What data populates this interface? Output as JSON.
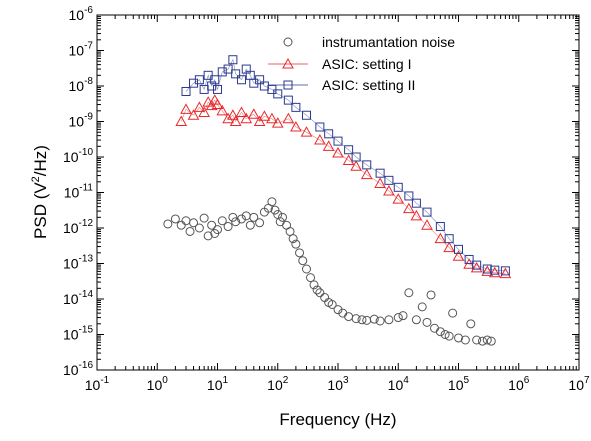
{
  "chart_data": {
    "type": "scatter",
    "xlabel": "Frequency (Hz)",
    "ylabel_main": "PSD (V",
    "ylabel_sup": "2",
    "ylabel_tail": "/Hz)",
    "x_scale": "log",
    "y_scale": "log",
    "xlim": [
      0.1,
      10000000
    ],
    "ylim": [
      1e-16,
      1e-06
    ],
    "x_ticks": [
      {
        "base": "10",
        "exp": "-1",
        "value": 0.1
      },
      {
        "base": "10",
        "exp": "0",
        "value": 1
      },
      {
        "base": "10",
        "exp": "1",
        "value": 10
      },
      {
        "base": "10",
        "exp": "2",
        "value": 100
      },
      {
        "base": "10",
        "exp": "3",
        "value": 1000
      },
      {
        "base": "10",
        "exp": "4",
        "value": 10000
      },
      {
        "base": "10",
        "exp": "5",
        "value": 100000
      },
      {
        "base": "10",
        "exp": "6",
        "value": 1000000
      },
      {
        "base": "10",
        "exp": "7",
        "value": 10000000
      }
    ],
    "y_ticks": [
      {
        "base": "10",
        "exp": "-6",
        "value": 1e-06
      },
      {
        "base": "10",
        "exp": "-7",
        "value": 1e-07
      },
      {
        "base": "10",
        "exp": "-8",
        "value": 1e-08
      },
      {
        "base": "10",
        "exp": "-9",
        "value": 1e-09
      },
      {
        "base": "10",
        "exp": "-10",
        "value": 1e-10
      },
      {
        "base": "10",
        "exp": "-11",
        "value": 1e-11
      },
      {
        "base": "10",
        "exp": "-12",
        "value": 1e-12
      },
      {
        "base": "10",
        "exp": "-13",
        "value": 1e-13
      },
      {
        "base": "10",
        "exp": "-14",
        "value": 1e-14
      },
      {
        "base": "10",
        "exp": "-15",
        "value": 1e-15
      },
      {
        "base": "10",
        "exp": "-16",
        "value": 1e-16
      }
    ],
    "grid": false,
    "legend_position": "top-right",
    "series": [
      {
        "name": "instrumantation noise",
        "marker": "circle",
        "color": "#555555",
        "points": [
          [
            1.5,
            1.3e-12
          ],
          [
            2,
            1.8e-12
          ],
          [
            2.5,
            1.2e-12
          ],
          [
            3,
            1.6e-12
          ],
          [
            3.5,
            8e-13
          ],
          [
            4,
            1.4e-12
          ],
          [
            5,
            1e-12
          ],
          [
            6,
            1.9e-12
          ],
          [
            7,
            6e-13
          ],
          [
            8,
            1.2e-12
          ],
          [
            9,
            7e-13
          ],
          [
            10,
            9e-13
          ],
          [
            12,
            1.6e-12
          ],
          [
            15,
            1.1e-12
          ],
          [
            18,
            2e-12
          ],
          [
            20,
            1.5e-12
          ],
          [
            25,
            1.8e-12
          ],
          [
            30,
            2.2e-12
          ],
          [
            35,
            1.2e-12
          ],
          [
            40,
            2e-12
          ],
          [
            50,
            1.4e-12
          ],
          [
            60,
            2.8e-12
          ],
          [
            70,
            3.6e-12
          ],
          [
            80,
            5.5e-12
          ],
          [
            90,
            3.2e-12
          ],
          [
            100,
            2.4e-12
          ],
          [
            110,
            1.5e-12
          ],
          [
            120,
            2e-12
          ],
          [
            140,
            1.2e-12
          ],
          [
            160,
            8e-13
          ],
          [
            180,
            5e-13
          ],
          [
            200,
            3.5e-13
          ],
          [
            230,
            2e-13
          ],
          [
            260,
            1.2e-13
          ],
          [
            300,
            7e-14
          ],
          [
            350,
            4e-14
          ],
          [
            400,
            2.5e-14
          ],
          [
            450,
            1.8e-14
          ],
          [
            500,
            1.5e-14
          ],
          [
            600,
            1.1e-14
          ],
          [
            700,
            8e-15
          ],
          [
            800,
            7e-15
          ],
          [
            1000,
            5e-15
          ],
          [
            1200,
            4e-15
          ],
          [
            1500,
            3.2e-15
          ],
          [
            2000,
            2.8e-15
          ],
          [
            2500,
            2.6e-15
          ],
          [
            3000,
            2.5e-15
          ],
          [
            4000,
            2.7e-15
          ],
          [
            5000,
            2.4e-15
          ],
          [
            7000,
            2.6e-15
          ],
          [
            10000,
            3e-15
          ],
          [
            12000,
            3.4e-15
          ],
          [
            15000,
            1.5e-14
          ],
          [
            20000,
            2.6e-15
          ],
          [
            25000,
            6e-15
          ],
          [
            30000,
            2.2e-15
          ],
          [
            35000,
            1.3e-14
          ],
          [
            40000,
            1.5e-15
          ],
          [
            50000,
            1.2e-15
          ],
          [
            60000,
            1e-15
          ],
          [
            70000,
            9e-16
          ],
          [
            80000,
            4e-15
          ],
          [
            100000,
            8e-16
          ],
          [
            130000,
            7e-16
          ],
          [
            160000,
            2e-15
          ],
          [
            200000,
            7e-16
          ],
          [
            250000,
            6.5e-16
          ],
          [
            300000,
            7e-16
          ],
          [
            350000,
            6.5e-16
          ]
        ]
      },
      {
        "name": "ASIC: setting I",
        "marker": "triangle",
        "color": "#e8282b",
        "points": [
          [
            2.5,
            1e-09
          ],
          [
            3,
            2.2e-09
          ],
          [
            4,
            1.5e-09
          ],
          [
            5,
            2.5e-09
          ],
          [
            6,
            1.8e-09
          ],
          [
            7,
            3.5e-09
          ],
          [
            8,
            2.8e-09
          ],
          [
            9,
            4e-09
          ],
          [
            10,
            3e-09
          ],
          [
            12,
            2e-09
          ],
          [
            15,
            1.2e-09
          ],
          [
            18,
            1.5e-09
          ],
          [
            20,
            1e-09
          ],
          [
            25,
            1.8e-09
          ],
          [
            30,
            1.2e-09
          ],
          [
            40,
            1.6e-09
          ],
          [
            50,
            1e-09
          ],
          [
            60,
            1.4e-09
          ],
          [
            80,
            1.2e-09
          ],
          [
            100,
            9e-10
          ],
          [
            150,
            1.2e-09
          ],
          [
            200,
            7e-10
          ],
          [
            300,
            5e-10
          ],
          [
            500,
            3e-10
          ],
          [
            700,
            2e-10
          ],
          [
            1000,
            1.3e-10
          ],
          [
            1500,
            8e-11
          ],
          [
            2000,
            5.5e-11
          ],
          [
            3000,
            3.2e-11
          ],
          [
            5000,
            1.8e-11
          ],
          [
            7000,
            1.1e-11
          ],
          [
            10000,
            6.5e-12
          ],
          [
            15000,
            3.5e-12
          ],
          [
            20000,
            2.2e-12
          ],
          [
            30000,
            1.2e-12
          ],
          [
            50000,
            5e-13
          ],
          [
            70000,
            2.8e-13
          ],
          [
            100000,
            1.6e-13
          ],
          [
            150000,
            9.5e-14
          ],
          [
            200000,
            7.5e-14
          ],
          [
            300000,
            6e-14
          ],
          [
            400000,
            5.5e-14
          ],
          [
            600000,
            5.2e-14
          ]
        ]
      },
      {
        "name": "ASIC: setting II",
        "marker": "square",
        "color": "#2b3a8f",
        "points": [
          [
            3,
            7e-09
          ],
          [
            4,
            1.2e-08
          ],
          [
            5,
            1.5e-08
          ],
          [
            6,
            8e-09
          ],
          [
            7,
            2e-08
          ],
          [
            8,
            1e-08
          ],
          [
            9,
            1.5e-08
          ],
          [
            10,
            8e-09
          ],
          [
            12,
            2.5e-08
          ],
          [
            15,
            3e-08
          ],
          [
            18,
            5.5e-08
          ],
          [
            20,
            2.2e-08
          ],
          [
            25,
            1.5e-08
          ],
          [
            30,
            3e-08
          ],
          [
            35,
            2e-08
          ],
          [
            40,
            1.2e-08
          ],
          [
            50,
            1.5e-08
          ],
          [
            60,
            1e-08
          ],
          [
            80,
            8e-09
          ],
          [
            100,
            6e-09
          ],
          [
            150,
            4e-09
          ],
          [
            200,
            2.5e-09
          ],
          [
            300,
            1.5e-09
          ],
          [
            500,
            7e-10
          ],
          [
            700,
            4.5e-10
          ],
          [
            1000,
            2.8e-10
          ],
          [
            1500,
            1.6e-10
          ],
          [
            2000,
            1e-10
          ],
          [
            3000,
            6e-11
          ],
          [
            5000,
            3.5e-11
          ],
          [
            7000,
            2.2e-11
          ],
          [
            10000,
            1.4e-11
          ],
          [
            15000,
            8e-12
          ],
          [
            20000,
            5e-12
          ],
          [
            30000,
            2.8e-12
          ],
          [
            50000,
            1.1e-12
          ],
          [
            70000,
            5e-13
          ],
          [
            100000,
            2.5e-13
          ],
          [
            150000,
            1.3e-13
          ],
          [
            200000,
            9e-14
          ],
          [
            300000,
            7e-14
          ],
          [
            400000,
            6.5e-14
          ],
          [
            600000,
            6.2e-14
          ]
        ]
      }
    ]
  }
}
